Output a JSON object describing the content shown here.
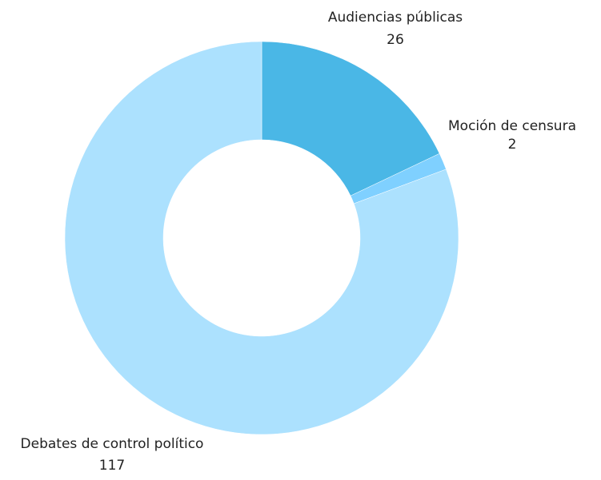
{
  "chart_data": {
    "type": "pie",
    "variant": "donut",
    "slices": [
      {
        "label": "Audiencias públicas",
        "value": 26,
        "color": "#4AB7E6"
      },
      {
        "label": "Moción de censura",
        "value": 2,
        "color": "#7FD0FF"
      },
      {
        "label": "Debates de control político",
        "value": 117,
        "color": "#ACE1FE"
      }
    ]
  }
}
